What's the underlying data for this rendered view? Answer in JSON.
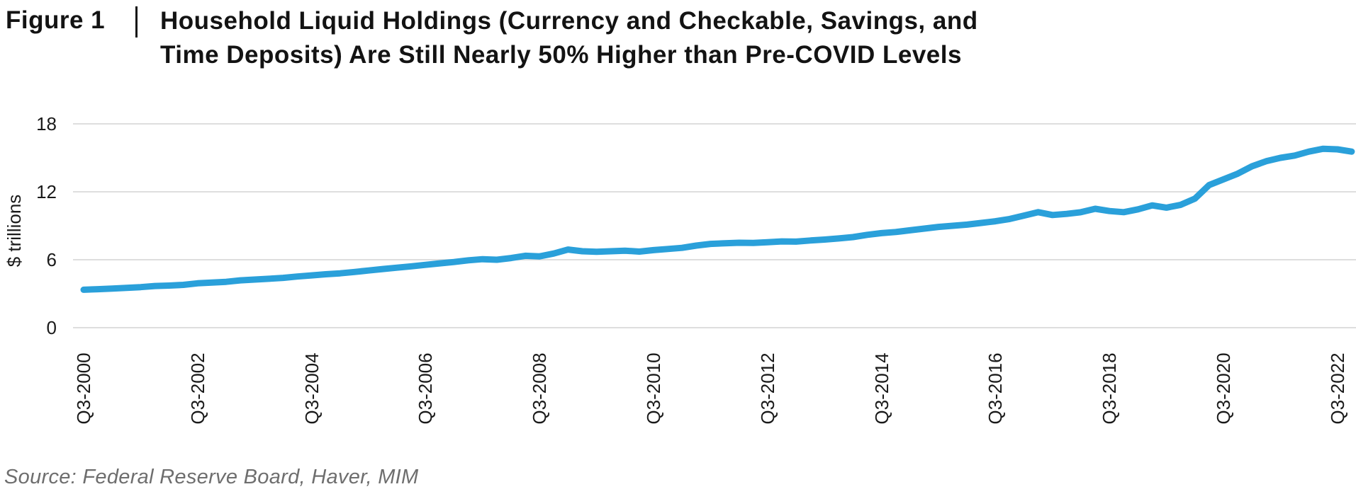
{
  "title": {
    "figure_label": "Figure 1",
    "line1": "Household Liquid Holdings (Currency and Checkable, Savings, and",
    "line2": "Time Deposits) Are Still Nearly 50% Higher than Pre-COVID Levels"
  },
  "source": "Source: Federal Reserve Board, Haver, MIM",
  "colors": {
    "line": "#2AA0DA",
    "gridline": "#DEDEDE",
    "title_text": "#131313",
    "axis_text": "#1A1A1A",
    "source_text": "#6E6E6E"
  },
  "chart_data": {
    "type": "line",
    "title": "Figure 1 | Household Liquid Holdings (Currency and Checkable, Savings, and Time Deposits) Are Still Nearly 50% Higher than Pre-COVID Levels",
    "xlabel": "",
    "ylabel": "$ trillions",
    "ylim": [
      0,
      18
    ],
    "yticks": [
      0,
      6,
      12,
      18
    ],
    "grid": "horizontal",
    "legend": "none",
    "frequency": "quarterly",
    "x_start": "Q3-2000",
    "x_end": "Q4-2022",
    "xtick_labels": [
      "Q3-2000",
      "Q3-2002",
      "Q3-2004",
      "Q3-2006",
      "Q3-2008",
      "Q3-2010",
      "Q3-2012",
      "Q3-2014",
      "Q3-2016",
      "Q3-2018",
      "Q3-2020",
      "Q3-2022"
    ],
    "xtick_every_quarters": 8,
    "series": [
      {
        "name": "Household liquid holdings ($ trillions)",
        "values": [
          3.35,
          3.4,
          3.45,
          3.52,
          3.58,
          3.68,
          3.72,
          3.78,
          3.92,
          3.98,
          4.05,
          4.18,
          4.25,
          4.32,
          4.4,
          4.52,
          4.62,
          4.72,
          4.8,
          4.92,
          5.05,
          5.18,
          5.3,
          5.42,
          5.55,
          5.68,
          5.8,
          5.95,
          6.05,
          6.0,
          6.15,
          6.35,
          6.3,
          6.55,
          6.9,
          6.75,
          6.7,
          6.75,
          6.8,
          6.72,
          6.85,
          6.95,
          7.05,
          7.25,
          7.4,
          7.45,
          7.5,
          7.48,
          7.55,
          7.62,
          7.6,
          7.7,
          7.78,
          7.88,
          8.0,
          8.2,
          8.35,
          8.45,
          8.6,
          8.75,
          8.9,
          9.0,
          9.1,
          9.25,
          9.4,
          9.6,
          9.9,
          10.2,
          9.95,
          10.05,
          10.2,
          10.5,
          10.3,
          10.2,
          10.45,
          10.8,
          10.6,
          10.85,
          11.4,
          12.6,
          13.1,
          13.6,
          14.25,
          14.7,
          15.0,
          15.2,
          15.55,
          15.8,
          15.75,
          15.55
        ]
      }
    ]
  }
}
